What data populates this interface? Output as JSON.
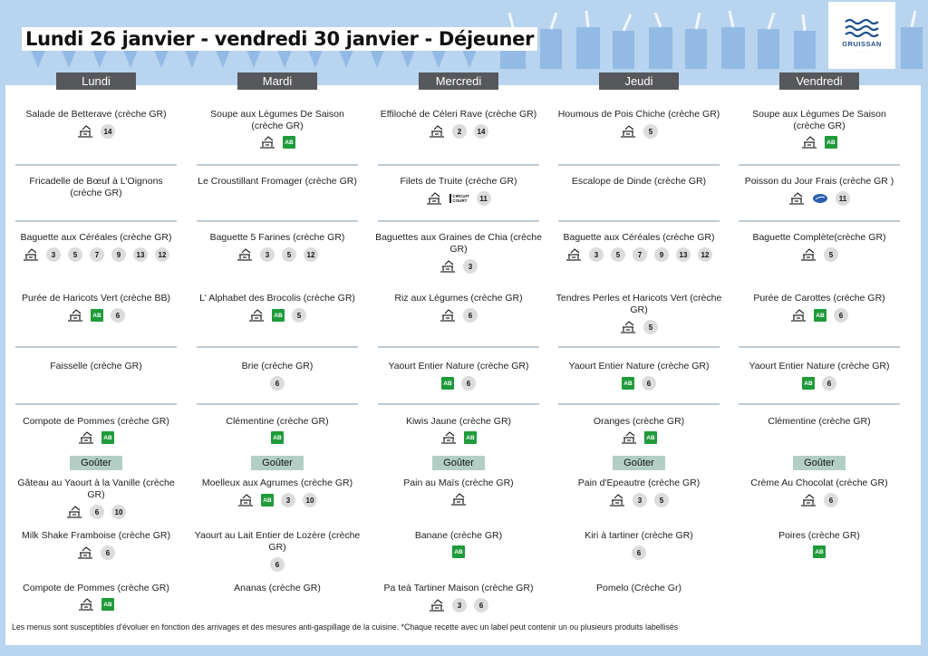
{
  "page_title": "Lundi 26 janvier - vendredi 30 janvier  - Déjeuner",
  "logo": {
    "brand": "GRUISSAN",
    "sub": "· · · · · ·"
  },
  "gouter_label": "Goûter",
  "footer": "Les menus sont susceptibles d'évoluer en fonction des arrivages et des mesures anti-gaspillage de la cuisine. *Chaque recette avec un label peut contenir un ou plusieurs produits labellisés",
  "days": [
    {
      "name": "Lundi",
      "items": [
        {
          "name": "Salade de Betterave (crèche GR)",
          "icons": [
            "fait-maison"
          ],
          "allergens": [
            "14"
          ]
        },
        {
          "name": "Fricadelle de Bœuf à L'Oignons (crèche GR)",
          "icons": [],
          "allergens": []
        },
        {
          "name": "Baguette aux Céréales (crèche GR)",
          "icons": [
            "fait-maison"
          ],
          "allergens": [
            "3",
            "5",
            "7",
            "9",
            "13",
            "12"
          ]
        },
        {
          "name": "Purée de Haricots Vert (crèche BB)",
          "icons": [
            "fait-maison",
            "bio"
          ],
          "allergens": [
            "6"
          ]
        },
        {
          "name": "Faisselle (crèche GR)",
          "icons": [],
          "allergens": []
        },
        {
          "name": "Compote de Pommes (crèche GR)",
          "icons": [
            "fait-maison",
            "bio"
          ],
          "allergens": []
        },
        {
          "name": "Gâteau au Yaourt à  la Vanille (crèche GR)",
          "icons": [
            "fait-maison"
          ],
          "allergens": [
            "6",
            "10"
          ]
        },
        {
          "name": "Milk Shake Framboise (crèche GR)",
          "icons": [
            "fait-maison"
          ],
          "allergens": [
            "6"
          ]
        },
        {
          "name": "Compote de Pommes (crèche GR)",
          "icons": [
            "fait-maison",
            "bio"
          ],
          "allergens": []
        }
      ]
    },
    {
      "name": "Mardi",
      "items": [
        {
          "name": "Soupe aux Légumes De Saison (crèche GR)",
          "icons": [
            "fait-maison",
            "bio"
          ],
          "allergens": []
        },
        {
          "name": "Le Croustillant Fromager (crèche GR)",
          "icons": [],
          "allergens": []
        },
        {
          "name": "Baguette 5 Farines (crèche GR)",
          "icons": [
            "fait-maison"
          ],
          "allergens": [
            "3",
            "5",
            "12"
          ]
        },
        {
          "name": "L' Alphabet des Brocolis   (crèche GR)",
          "icons": [
            "fait-maison",
            "bio"
          ],
          "allergens": [
            "5"
          ]
        },
        {
          "name": "Brie (crèche GR)",
          "icons": [],
          "allergens": [
            "6"
          ]
        },
        {
          "name": "Clémentine (crèche GR)",
          "icons": [
            "bio"
          ],
          "allergens": []
        },
        {
          "name": "Moelleux aux Agrumes (crèche GR)",
          "icons": [
            "fait-maison",
            "bio"
          ],
          "allergens": [
            "3",
            "10"
          ]
        },
        {
          "name": "Yaourt au Lait Entier de Lozère (crèche GR)",
          "icons": [],
          "allergens": [
            "6"
          ]
        },
        {
          "name": "Ananas (crèche GR)",
          "icons": [],
          "allergens": []
        }
      ]
    },
    {
      "name": "Mercredi",
      "items": [
        {
          "name": "Effiloché de Céleri Rave (crèche GR)",
          "icons": [
            "fait-maison"
          ],
          "allergens": [
            "2",
            "14"
          ]
        },
        {
          "name": "Filets de Truite (crèche GR)",
          "icons": [
            "fait-maison",
            "circuit-court"
          ],
          "allergens": [
            "11"
          ]
        },
        {
          "name": "Baguettes aux Graines de Chia (crèche GR)",
          "icons": [
            "fait-maison"
          ],
          "allergens": [
            "3"
          ]
        },
        {
          "name": "Riz aux Légumes (crèche GR)",
          "icons": [
            "fait-maison"
          ],
          "allergens": [
            "6"
          ]
        },
        {
          "name": "Yaourt Entier Nature (crèche GR)",
          "icons": [
            "bio"
          ],
          "allergens": [
            "6"
          ]
        },
        {
          "name": "Kiwis Jaune (crèche GR)",
          "icons": [
            "fait-maison",
            "bio"
          ],
          "allergens": []
        },
        {
          "name": "Pain au Maïs (crèche GR)",
          "icons": [
            "fait-maison"
          ],
          "allergens": []
        },
        {
          "name": "Banane (crèche GR)",
          "icons": [
            "bio"
          ],
          "allergens": []
        },
        {
          "name": "Pa͏ ͏teà Tartiner Maison (crèche GR)",
          "icons": [
            "fait-maison"
          ],
          "allergens": [
            "3",
            "6"
          ]
        }
      ]
    },
    {
      "name": "Jeudi",
      "items": [
        {
          "name": "Houmous de Pois Chiche (crèche GR)",
          "icons": [
            "fait-maison"
          ],
          "allergens": [
            "5"
          ]
        },
        {
          "name": "Escalope de Dinde (crèche GR)",
          "icons": [],
          "allergens": []
        },
        {
          "name": "Baguette aux Céréales (crèche GR)",
          "icons": [
            "fait-maison"
          ],
          "allergens": [
            "3",
            "5",
            "7",
            "9",
            "13",
            "12"
          ]
        },
        {
          "name": "Tendres Perles et Haricots Vert (crèche GR)",
          "icons": [
            "fait-maison"
          ],
          "allergens": [
            "5"
          ]
        },
        {
          "name": "Yaourt Entier Nature (crèche GR)",
          "icons": [
            "bio"
          ],
          "allergens": [
            "6"
          ]
        },
        {
          "name": "Oranges (crèche GR)",
          "icons": [
            "fait-maison",
            "bio"
          ],
          "allergens": []
        },
        {
          "name": "Pain d'Epeautre (crèche GR)",
          "icons": [
            "fait-maison"
          ],
          "allergens": [
            "3",
            "5"
          ]
        },
        {
          "name": "Kiri à tartiner (crèche GR)",
          "icons": [],
          "allergens": [
            "6"
          ]
        },
        {
          "name": "Pomelo (Crèche Gr)",
          "icons": [],
          "allergens": []
        }
      ]
    },
    {
      "name": "Vendredi",
      "items": [
        {
          "name": "Soupe aux Légumes De Saison (crèche GR)",
          "icons": [
            "fait-maison",
            "bio"
          ],
          "allergens": []
        },
        {
          "name": "Poisson du Jour Frais (crèche GR )",
          "icons": [
            "fait-maison",
            "msc-fish"
          ],
          "allergens": [
            "11"
          ]
        },
        {
          "name": "Baguette Complète(crèche GR)",
          "icons": [
            "fait-maison"
          ],
          "allergens": [
            "5"
          ]
        },
        {
          "name": "Purée de Carottes (crèche GR)",
          "icons": [
            "fait-maison",
            "bio"
          ],
          "allergens": [
            "6"
          ]
        },
        {
          "name": "Yaourt Entier Nature (crèche GR)",
          "icons": [
            "bio"
          ],
          "allergens": [
            "6"
          ]
        },
        {
          "name": "Clémentine (crèche GR)",
          "icons": [],
          "allergens": []
        },
        {
          "name": "Crème  Au Chocolat  (crèche GR)",
          "icons": [
            "fait-maison"
          ],
          "allergens": [
            "6"
          ]
        },
        {
          "name": "Poires (crèche GR)",
          "icons": [
            "bio"
          ],
          "allergens": []
        },
        {
          "name": "",
          "icons": [],
          "allergens": []
        }
      ]
    }
  ]
}
